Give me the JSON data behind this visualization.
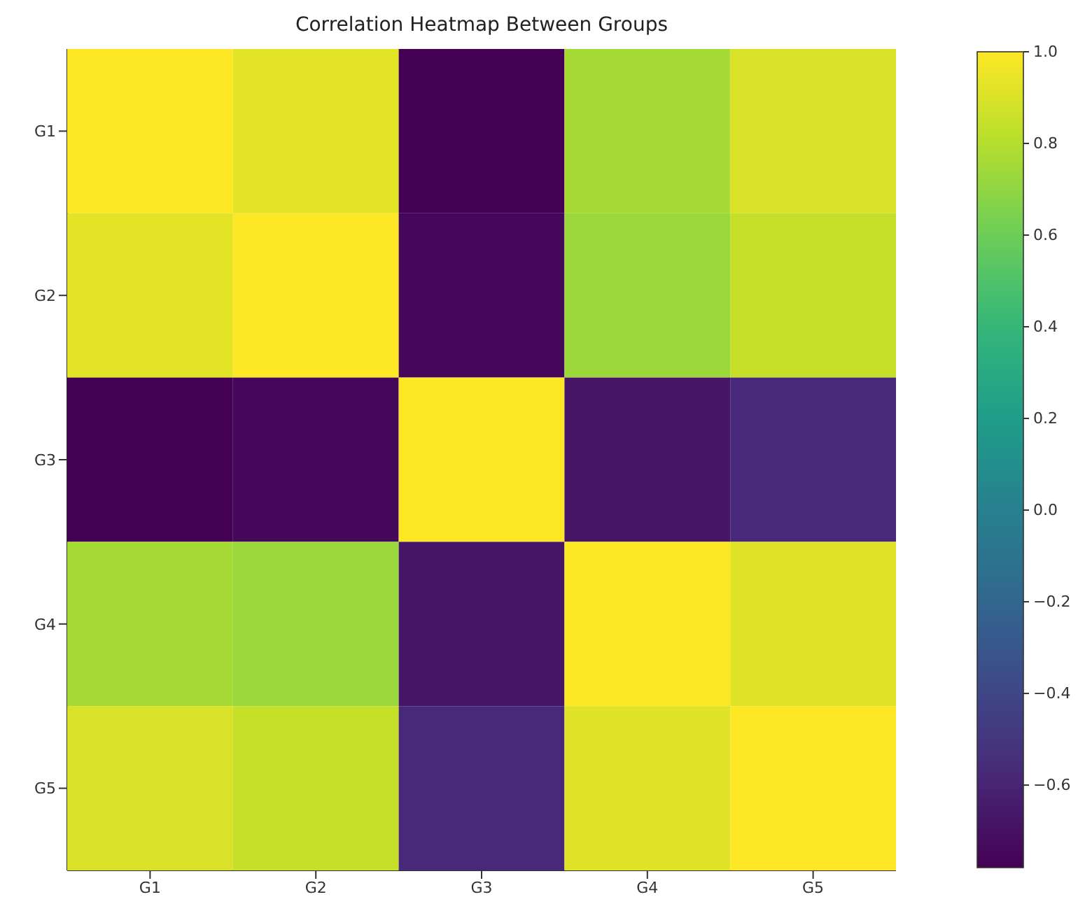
{
  "chart_data": {
    "type": "heatmap",
    "title": "Correlation Heatmap Between Groups",
    "categories": [
      "G1",
      "G2",
      "G3",
      "G4",
      "G5"
    ],
    "y_categories": [
      "G1",
      "G2",
      "G3",
      "G4",
      "G5"
    ],
    "cells": [
      [
        1.0,
        0.93,
        -0.78,
        0.76,
        0.9
      ],
      [
        0.93,
        1.0,
        -0.75,
        0.73,
        0.85
      ],
      [
        -0.78,
        -0.75,
        1.0,
        -0.68,
        -0.58
      ],
      [
        0.76,
        0.73,
        -0.68,
        1.0,
        0.92
      ],
      [
        0.9,
        0.85,
        -0.58,
        0.92,
        1.0
      ]
    ],
    "clim": [
      -0.78,
      1.0
    ],
    "cticks": [
      {
        "value": -0.6,
        "label": "−0.6"
      },
      {
        "value": -0.4,
        "label": "−0.4"
      },
      {
        "value": -0.2,
        "label": "−0.2"
      },
      {
        "value": 0,
        "label": "0.0"
      },
      {
        "value": 0.2,
        "label": "0.2"
      },
      {
        "value": 0.4,
        "label": "0.4"
      },
      {
        "value": 0.6,
        "label": "0.6"
      },
      {
        "value": 0.8,
        "label": "0.8"
      },
      {
        "value": 1.0,
        "label": "1.0"
      }
    ]
  }
}
